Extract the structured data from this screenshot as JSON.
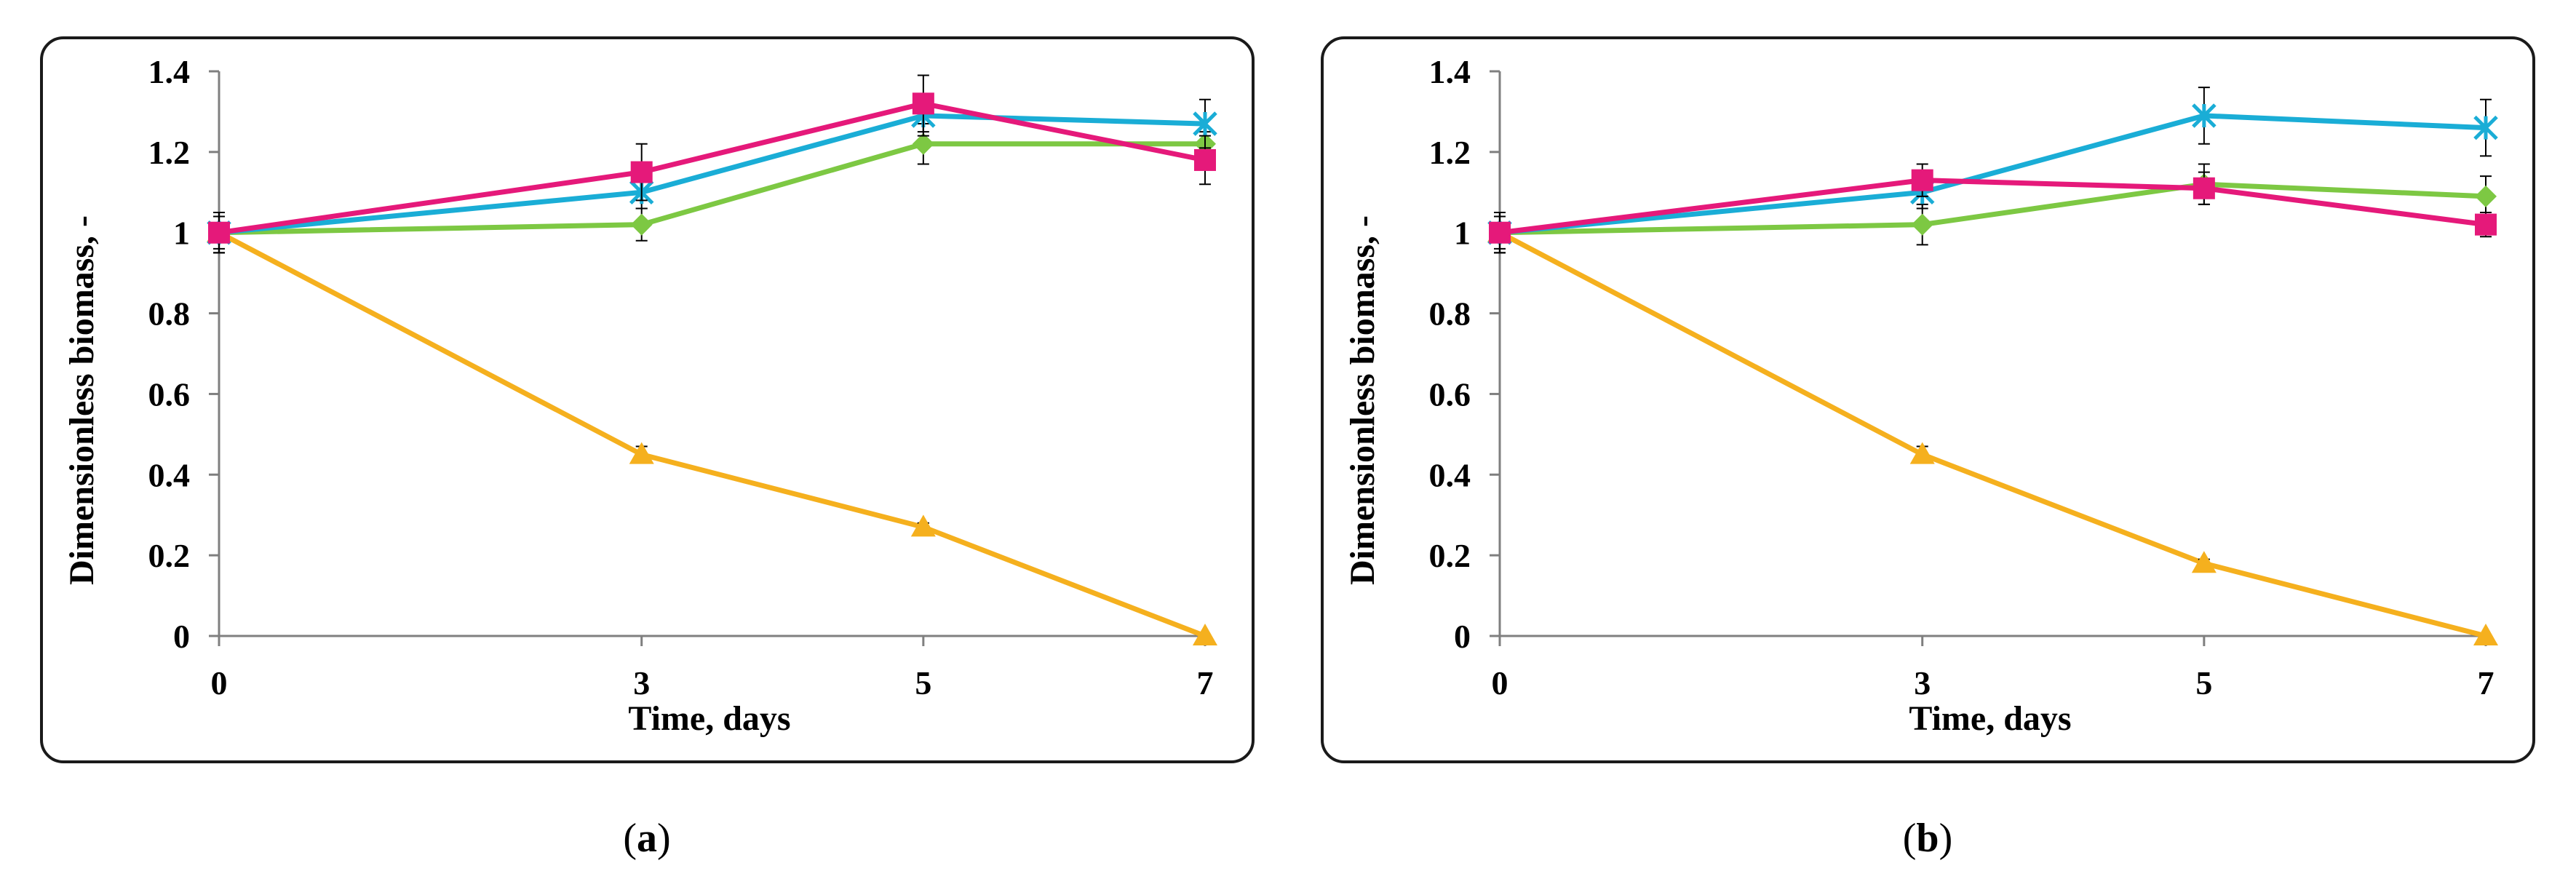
{
  "chart_data": [
    {
      "type": "line",
      "panel_label": "a",
      "x": [
        0,
        3,
        5,
        7
      ],
      "x_ticks": [
        "0",
        "3",
        "5",
        "7"
      ],
      "xlabel": "Time, days",
      "ylabel": "Dimensionless biomass, -",
      "ylim": [
        0,
        1.4
      ],
      "y_ticks": [
        "0",
        "0.2",
        "0.4",
        "0.6",
        "0.8",
        "1",
        "1.2",
        "1.4"
      ],
      "series": [
        {
          "name": "series-triangle",
          "color": "#F5B01E",
          "marker": "triangle",
          "values": [
            1.0,
            0.45,
            0.27,
            0.0
          ],
          "errors": [
            0.05,
            0.02,
            0.01,
            0
          ]
        },
        {
          "name": "series-diamond",
          "color": "#7DC843",
          "marker": "diamond",
          "values": [
            1.0,
            1.02,
            1.22,
            1.22
          ],
          "errors": [
            0.05,
            0.04,
            0.05,
            0.03
          ]
        },
        {
          "name": "series-cross",
          "color": "#1AADD6",
          "marker": "cross",
          "values": [
            1.0,
            1.1,
            1.29,
            1.27
          ],
          "errors": [
            0.04,
            0.04,
            0.05,
            0.06
          ]
        },
        {
          "name": "series-square",
          "color": "#E5197A",
          "marker": "square",
          "values": [
            1.0,
            1.15,
            1.32,
            1.18
          ],
          "errors": [
            0.05,
            0.07,
            0.07,
            0.06
          ]
        }
      ]
    },
    {
      "type": "line",
      "panel_label": "b",
      "x": [
        0,
        3,
        5,
        7
      ],
      "x_ticks": [
        "0",
        "3",
        "5",
        "7"
      ],
      "xlabel": "Time, days",
      "ylabel": "Dimensionless biomass, -",
      "ylim": [
        0,
        1.4
      ],
      "y_ticks": [
        "0",
        "0.2",
        "0.4",
        "0.6",
        "0.8",
        "1",
        "1.2",
        "1.4"
      ],
      "series": [
        {
          "name": "series-triangle",
          "color": "#F5B01E",
          "marker": "triangle",
          "values": [
            1.0,
            0.45,
            0.18,
            0.0
          ],
          "errors": [
            0.05,
            0.02,
            0.01,
            0
          ]
        },
        {
          "name": "series-diamond",
          "color": "#7DC843",
          "marker": "diamond",
          "values": [
            1.0,
            1.02,
            1.12,
            1.09
          ],
          "errors": [
            0.05,
            0.05,
            0.05,
            0.05
          ]
        },
        {
          "name": "series-cross",
          "color": "#1AADD6",
          "marker": "cross",
          "values": [
            1.0,
            1.1,
            1.29,
            1.26
          ],
          "errors": [
            0.04,
            0.04,
            0.07,
            0.07
          ]
        },
        {
          "name": "series-square",
          "color": "#E5197A",
          "marker": "square",
          "values": [
            1.0,
            1.13,
            1.11,
            1.02
          ],
          "errors": [
            0.05,
            0.04,
            0.04,
            0.03
          ]
        }
      ]
    }
  ],
  "captions": [
    {
      "open": "(",
      "letter": "a",
      "close": ")"
    },
    {
      "open": "(",
      "letter": "b",
      "close": ")"
    }
  ]
}
